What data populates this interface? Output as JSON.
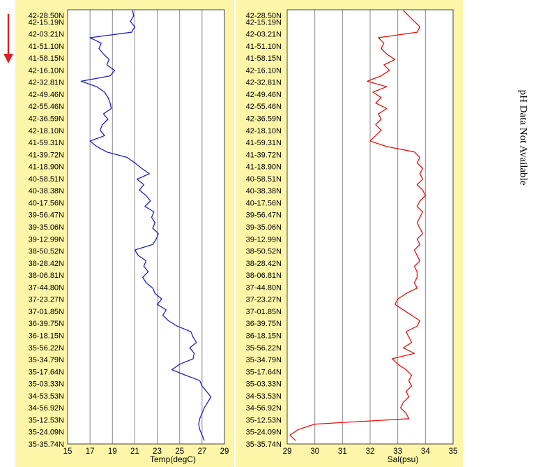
{
  "direction_arrow_color": "#e02020",
  "ph_note": "pH Data Not Available",
  "chart_data": [
    {
      "type": "line",
      "xlabel": "Temp(degC)",
      "ylabel": "",
      "xlim": [
        15,
        29
      ],
      "xticks": [
        "15",
        "17",
        "19",
        "21",
        "23",
        "25",
        "27",
        "29"
      ],
      "grid": "vertical",
      "background": "#fdf6a8",
      "line_color": "#1f1fcf",
      "y_tick_labels": [
        "42-28.50N",
        "42-15.19N",
        "42-03.21N",
        "41-51.10N",
        "41-58.15N",
        "42-16.10N",
        "42-32.81N",
        "42-49.46N",
        "42-55.46N",
        "42-36.59N",
        "42-18.10N",
        "41-59.31N",
        "41-39.72N",
        "41-18.90N",
        "40-58.51N",
        "40-38.38N",
        "40-17.56N",
        "39-56.47N",
        "39-35.06N",
        "39-12.99N",
        "38-50.52N",
        "38-28.42N",
        "38-06.81N",
        "37-44.80N",
        "37-23.27N",
        "37-01.85N",
        "36-39.75N",
        "36-18.15N",
        "35-56.22N",
        "35-34.79N",
        "35-17.64N",
        "35-03.33N",
        "34-53.53N",
        "34-56.92N",
        "35-12.53N",
        "35-24.09N",
        "35-35.74N"
      ],
      "series": [
        {
          "values": [
            20.8,
            20.9,
            20.6,
            21.0,
            20.7,
            17.0,
            18.0,
            17.8,
            18.2,
            18.7,
            18.5,
            19.2,
            18.8,
            16.2,
            17.6,
            18.3,
            18.6,
            18.8,
            18.9,
            18.2,
            18.6,
            18.1,
            17.9,
            18.3,
            17.0,
            17.6,
            18.5,
            20.3,
            21.0,
            21.6,
            22.3,
            21.2,
            21.8,
            21.4,
            22.0,
            22.4,
            21.9,
            22.7,
            22.5,
            22.8,
            22.6,
            23.1,
            22.9,
            22.6,
            21.0,
            21.3,
            22.0,
            21.8,
            22.2,
            21.7,
            22.0,
            22.6,
            22.8,
            23.4,
            23.0,
            23.8,
            23.5,
            24.0,
            24.8,
            26.0,
            26.2,
            26.5,
            25.9,
            26.3,
            26.2,
            25.0,
            24.3,
            25.5,
            26.8,
            27.0,
            27.4,
            27.8,
            27.5,
            27.2,
            27.0,
            26.8,
            26.7,
            26.8,
            27.0,
            27.2
          ]
        }
      ]
    },
    {
      "type": "line",
      "xlabel": "Sal(psu)",
      "ylabel": "",
      "xlim": [
        29,
        35
      ],
      "xticks": [
        "29",
        "30",
        "31",
        "32",
        "33",
        "34",
        "35"
      ],
      "grid": "vertical",
      "background": "#fdf6a8",
      "line_color": "#ee1111",
      "y_tick_labels": [
        "42-28.50N",
        "42-15.19N",
        "42-03.21N",
        "41-51.10N",
        "41-58.15N",
        "42-16.10N",
        "42-32.81N",
        "42-49.46N",
        "42-55.46N",
        "42-36.59N",
        "42-18.10N",
        "41-59.31N",
        "41-39.72N",
        "41-18.90N",
        "40-58.51N",
        "40-38.38N",
        "40-17.56N",
        "39-56.47N",
        "39-35.06N",
        "39-12.99N",
        "38-50.52N",
        "38-28.42N",
        "38-06.81N",
        "37-44.80N",
        "37-23.27N",
        "37-01.85N",
        "36-39.75N",
        "36-18.15N",
        "35-56.22N",
        "35-34.79N",
        "35-17.64N",
        "35-03.33N",
        "34-53.53N",
        "34-56.92N",
        "35-12.53N",
        "35-24.09N",
        "35-35.74N"
      ],
      "series": [
        {
          "values": [
            33.2,
            33.4,
            33.6,
            33.8,
            33.7,
            32.3,
            32.5,
            32.4,
            32.6,
            32.9,
            32.5,
            32.7,
            32.4,
            31.9,
            32.6,
            32.1,
            32.4,
            32.2,
            32.6,
            32.3,
            32.4,
            32.2,
            32.4,
            32.2,
            32.0,
            32.6,
            33.6,
            33.8,
            33.7,
            33.9,
            33.8,
            33.9,
            33.7,
            33.9,
            34.0,
            33.8,
            33.7,
            33.9,
            33.8,
            33.7,
            33.8,
            33.9,
            33.7,
            33.8,
            33.6,
            33.7,
            33.8,
            33.6,
            33.7,
            33.7,
            33.6,
            33.7,
            33.3,
            33.0,
            32.9,
            33.2,
            33.5,
            33.8,
            33.7,
            33.3,
            33.4,
            33.5,
            33.2,
            33.6,
            32.8,
            33.0,
            33.3,
            33.5,
            33.4,
            33.5,
            33.3,
            33.4,
            33.2,
            33.1,
            33.3,
            33.4,
            30.0,
            29.4,
            29.1,
            29.3
          ]
        }
      ]
    }
  ]
}
